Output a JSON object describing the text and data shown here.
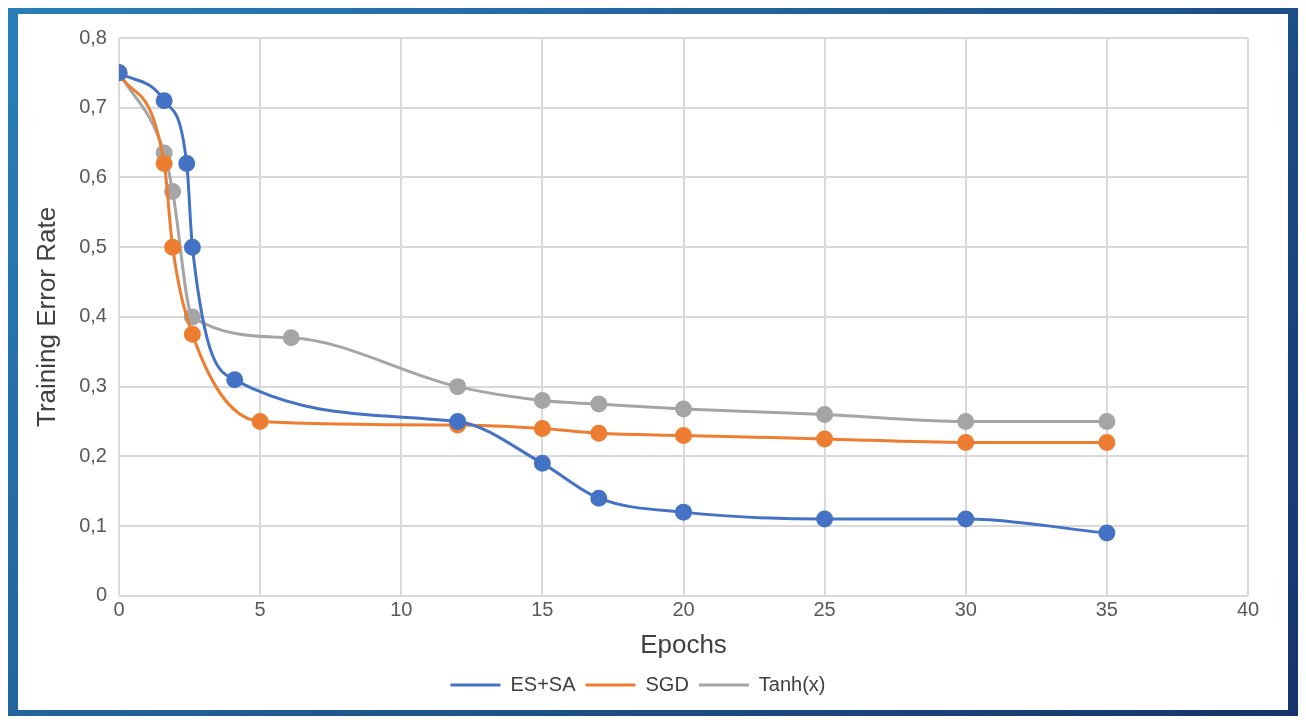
{
  "chart_data": {
    "type": "line",
    "xlabel": "Epochs",
    "ylabel": "Training Error Rate",
    "xlim": [
      0,
      40
    ],
    "xticks": [
      0,
      5,
      10,
      15,
      20,
      25,
      30,
      35,
      40
    ],
    "ylim": [
      0,
      0.8
    ],
    "yticks": [
      0,
      {
        "value": 0.1,
        "label": "0,1"
      },
      {
        "value": 0.2,
        "label": "0,2"
      },
      {
        "value": 0.3,
        "label": "0,3"
      },
      {
        "value": 0.4,
        "label": "0,4"
      },
      {
        "value": 0.5,
        "label": "0,5"
      },
      {
        "value": 0.6,
        "label": "0,6"
      },
      {
        "value": 0.7,
        "label": "0,7"
      },
      {
        "value": 0.8,
        "label": "0,8"
      }
    ],
    "grid": true,
    "legend": "bottom",
    "marker": "circle",
    "line_style": "solid",
    "series": [
      {
        "name": "ES+SA",
        "color": "#4472c4",
        "x": [
          0,
          1.6,
          2.4,
          2.6,
          4.1,
          12,
          15,
          17,
          20,
          25,
          30,
          35
        ],
        "values": [
          0.75,
          0.71,
          0.62,
          0.5,
          0.31,
          0.25,
          0.19,
          0.14,
          0.12,
          0.11,
          0.11,
          0.09
        ]
      },
      {
        "name": "SGD",
        "color": "#ed7d31",
        "x": [
          0,
          1.6,
          1.9,
          2.6,
          5,
          12,
          15,
          17,
          20,
          25,
          30,
          35
        ],
        "values": [
          0.75,
          0.62,
          0.5,
          0.375,
          0.25,
          0.245,
          0.24,
          0.233,
          0.23,
          0.225,
          0.22,
          0.22
        ]
      },
      {
        "name": "Tanh(x)",
        "color": "#a5a5a5",
        "x": [
          0,
          1.6,
          1.9,
          2.6,
          6.1,
          12,
          15,
          17,
          20,
          25,
          30,
          35
        ],
        "values": [
          0.75,
          0.635,
          0.58,
          0.4,
          0.37,
          0.3,
          0.28,
          0.275,
          0.268,
          0.26,
          0.25,
          0.25
        ]
      }
    ]
  }
}
